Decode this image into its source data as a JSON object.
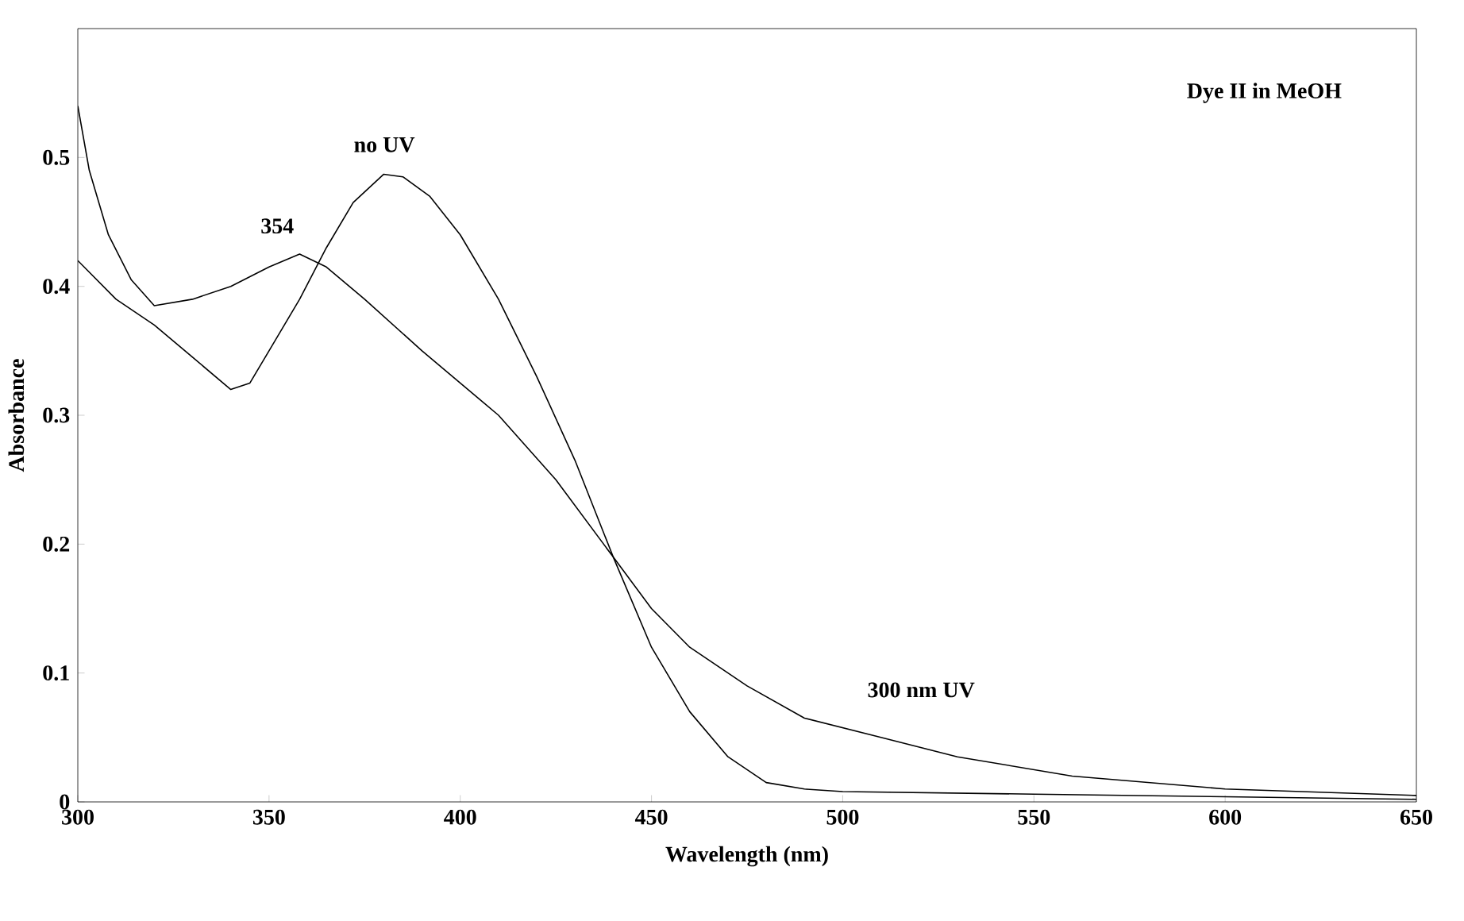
{
  "chart_data": {
    "type": "line",
    "xlabel": "Wavelength (nm)",
    "ylabel": "Absorbance",
    "xlim": [
      300,
      650
    ],
    "ylim": [
      0,
      0.6
    ],
    "xticks": [
      300,
      350,
      400,
      450,
      500,
      550,
      600,
      650
    ],
    "yticks": [
      0,
      0.1,
      0.2,
      0.3,
      0.4,
      0.5
    ],
    "grid": false,
    "marker": "none",
    "line_style": "solid",
    "series": [
      {
        "color": "#000000",
        "x": [
          300,
          310,
          320,
          330,
          340,
          345,
          350,
          358,
          365,
          372,
          380,
          385,
          392,
          400,
          410,
          420,
          430,
          440,
          450,
          460,
          470,
          480,
          490,
          500,
          550,
          600,
          650
        ],
        "values": [
          0.42,
          0.39,
          0.37,
          0.345,
          0.32,
          0.325,
          0.35,
          0.39,
          0.43,
          0.465,
          0.487,
          0.485,
          0.47,
          0.44,
          0.39,
          0.33,
          0.265,
          0.19,
          0.12,
          0.07,
          0.035,
          0.015,
          0.01,
          0.008,
          0.006,
          0.004,
          0.002
        ]
      },
      {
        "color": "#000000",
        "x": [
          300,
          303,
          308,
          314,
          320,
          330,
          340,
          350,
          358,
          365,
          375,
          390,
          410,
          425,
          440,
          450,
          460,
          475,
          490,
          510,
          530,
          560,
          600,
          650
        ],
        "values": [
          0.54,
          0.49,
          0.44,
          0.405,
          0.385,
          0.39,
          0.4,
          0.415,
          0.425,
          0.415,
          0.39,
          0.35,
          0.3,
          0.25,
          0.19,
          0.15,
          0.12,
          0.09,
          0.065,
          0.05,
          0.035,
          0.02,
          0.01,
          0.005
        ]
      }
    ],
    "annotations": [
      "no UV",
      "354",
      "300 nm UV",
      "Dye II in MeOH"
    ]
  }
}
